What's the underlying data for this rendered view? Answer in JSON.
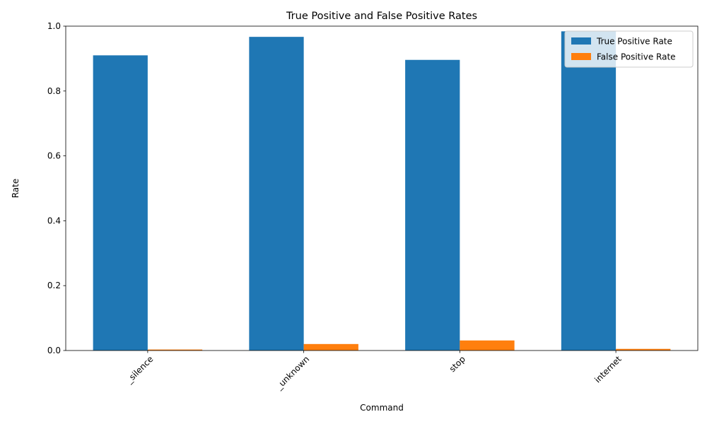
{
  "chart_data": {
    "type": "bar",
    "title": "True Positive and False Positive Rates",
    "xlabel": "Command",
    "ylabel": "Rate",
    "categories": [
      "_silence",
      "_unknown",
      "stop",
      "internet"
    ],
    "series": [
      {
        "name": "True Positive Rate",
        "values": [
          0.91,
          0.967,
          0.896,
          0.984
        ],
        "color": "#1f77b4"
      },
      {
        "name": "False Positive Rate",
        "values": [
          0.003,
          0.02,
          0.031,
          0.005
        ],
        "color": "#ff7f0e"
      }
    ],
    "ylim": [
      0,
      1.0
    ],
    "yticks": [
      "0.0",
      "0.2",
      "0.4",
      "0.6",
      "0.8",
      "1.0"
    ],
    "xtick_rotation": 45,
    "grid": false,
    "legend_position": "top-right"
  }
}
